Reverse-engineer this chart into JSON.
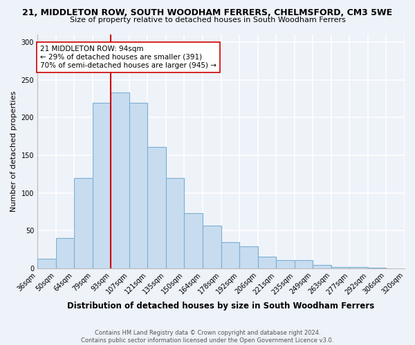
{
  "title1": "21, MIDDLETON ROW, SOUTH WOODHAM FERRERS, CHELMSFORD, CM3 5WE",
  "title2": "Size of property relative to detached houses in South Woodham Ferrers",
  "xlabel": "Distribution of detached houses by size in South Woodham Ferrers",
  "ylabel": "Number of detached properties",
  "footer1": "Contains HM Land Registry data © Crown copyright and database right 2024.",
  "footer2": "Contains public sector information licensed under the Open Government Licence v3.0.",
  "bin_labels": [
    "36sqm",
    "50sqm",
    "64sqm",
    "79sqm",
    "93sqm",
    "107sqm",
    "121sqm",
    "135sqm",
    "150sqm",
    "164sqm",
    "178sqm",
    "192sqm",
    "206sqm",
    "221sqm",
    "235sqm",
    "249sqm",
    "263sqm",
    "277sqm",
    "292sqm",
    "306sqm",
    "320sqm"
  ],
  "bar_values": [
    13,
    40,
    120,
    219,
    233,
    219,
    161,
    120,
    73,
    57,
    35,
    29,
    15,
    11,
    11,
    4,
    2,
    2,
    1,
    0
  ],
  "bar_color": "#c8dcef",
  "bar_edge_color": "#7bafd4",
  "vline_x": 4,
  "vline_color": "#cc0000",
  "annotation_text": "21 MIDDLETON ROW: 94sqm\n← 29% of detached houses are smaller (391)\n70% of semi-detached houses are larger (945) →",
  "annotation_box_color": "white",
  "annotation_box_edge_color": "#cc0000",
  "ylim": [
    0,
    310
  ],
  "yticks": [
    0,
    50,
    100,
    150,
    200,
    250,
    300
  ],
  "background_color": "#eef2f9",
  "plot_bg_color": "#eef2f9",
  "grid_color": "#ffffff",
  "title1_fontsize": 9,
  "title2_fontsize": 8,
  "ylabel_fontsize": 8,
  "xlabel_fontsize": 8.5,
  "tick_fontsize": 7,
  "annotation_fontsize": 7.5,
  "footer_fontsize": 6
}
